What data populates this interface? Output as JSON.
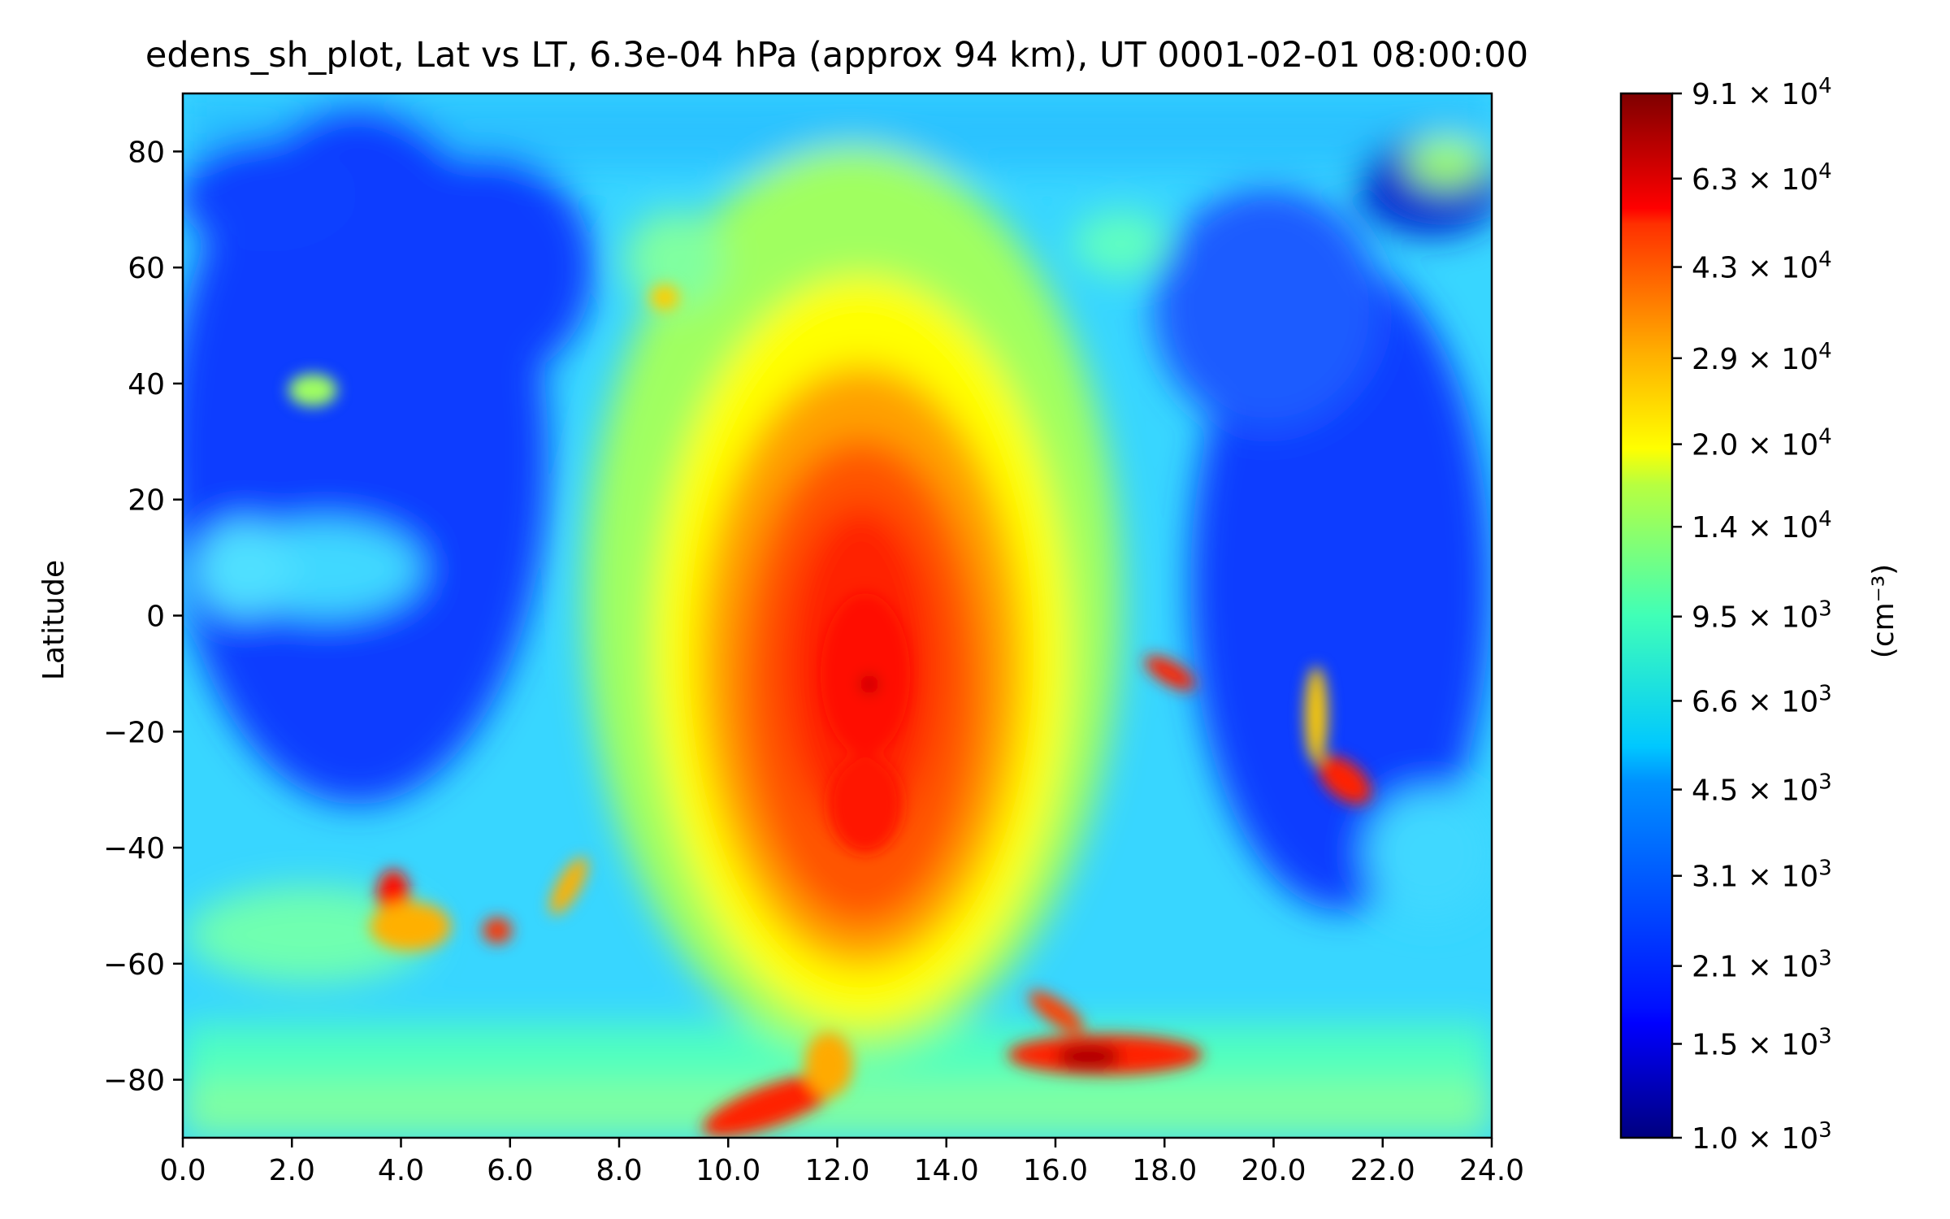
{
  "chart_data": {
    "type": "heatmap",
    "title": "edens_sh_plot, Lat vs LT, 6.3e-04 hPa (approx 94 km), UT 0001-02-01 08:00:00",
    "xlabel": "",
    "ylabel": "Latitude",
    "xlim": [
      0,
      24
    ],
    "ylim": [
      -90,
      90
    ],
    "x_ticks": [
      "0.0",
      "2.0",
      "4.0",
      "6.0",
      "8.0",
      "10.0",
      "12.0",
      "14.0",
      "16.0",
      "18.0",
      "20.0",
      "22.0",
      "24.0"
    ],
    "x_tick_values": [
      0,
      2,
      4,
      6,
      8,
      10,
      12,
      14,
      16,
      18,
      20,
      22,
      24
    ],
    "y_ticks": [
      "80",
      "60",
      "40",
      "20",
      "0",
      "−20",
      "−40",
      "−60",
      "−80"
    ],
    "y_tick_values": [
      80,
      60,
      40,
      20,
      0,
      -20,
      -40,
      -60,
      -80
    ],
    "colormap": "jet",
    "color_scale": "log",
    "grid": false,
    "colorbar": {
      "label": "(cm⁻³)",
      "range": [
        1000,
        91000
      ],
      "ticks": [
        {
          "value": 91000,
          "mant": "9.1",
          "exp": "4"
        },
        {
          "value": 63000,
          "mant": "6.3",
          "exp": "4"
        },
        {
          "value": 43000,
          "mant": "4.3",
          "exp": "4"
        },
        {
          "value": 29000,
          "mant": "2.9",
          "exp": "4"
        },
        {
          "value": 20000,
          "mant": "2.0",
          "exp": "4"
        },
        {
          "value": 14000,
          "mant": "1.4",
          "exp": "4"
        },
        {
          "value": 9500,
          "mant": "9.5",
          "exp": "3"
        },
        {
          "value": 6600,
          "mant": "6.6",
          "exp": "3"
        },
        {
          "value": 4500,
          "mant": "4.5",
          "exp": "3"
        },
        {
          "value": 3100,
          "mant": "3.1",
          "exp": "3"
        },
        {
          "value": 2100,
          "mant": "2.1",
          "exp": "3"
        },
        {
          "value": 1500,
          "mant": "1.5",
          "exp": "3"
        },
        {
          "value": 1000,
          "mant": "1.0",
          "exp": "3"
        }
      ]
    },
    "features": [
      {
        "kind": "daytime-maximum",
        "lt": 12.5,
        "lat": -15,
        "value": 60000
      },
      {
        "kind": "daytime-maximum",
        "lt": 12.5,
        "lat": -35,
        "value": 55000
      },
      {
        "kind": "high",
        "lt": 11.2,
        "lat": -85,
        "value": 50000
      },
      {
        "kind": "high",
        "lt": 17.2,
        "lat": -76,
        "value": 75000
      },
      {
        "kind": "high",
        "lt": 18.0,
        "lat": -10,
        "value": 60000
      },
      {
        "kind": "high",
        "lt": 21.3,
        "lat": -30,
        "value": 60000
      },
      {
        "kind": "high",
        "lt": 3.8,
        "lat": -48,
        "value": 60000
      },
      {
        "kind": "high",
        "lt": 5.7,
        "lat": -54,
        "value": 45000
      },
      {
        "kind": "low",
        "lt": 3.0,
        "lat": 25,
        "value": 1800
      },
      {
        "kind": "low",
        "lt": 21.5,
        "lat": 5,
        "value": 1800
      },
      {
        "kind": "low",
        "lt": 22.5,
        "lat": 73,
        "value": 1400
      }
    ]
  }
}
